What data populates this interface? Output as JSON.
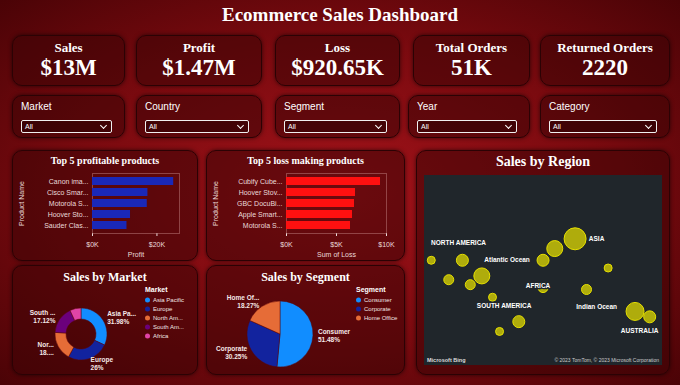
{
  "title": "Ecommerce Sales Dashboard",
  "kpis": [
    {
      "label": "Sales",
      "value": "$13M"
    },
    {
      "label": "Profit",
      "value": "$1.47M"
    },
    {
      "label": "Loss",
      "value": "$920.65K"
    },
    {
      "label": "Total Orders",
      "value": "51K"
    },
    {
      "label": "Returned Orders",
      "value": "2220"
    }
  ],
  "filters": [
    {
      "label": "Market",
      "value": "All"
    },
    {
      "label": "Country",
      "value": "All"
    },
    {
      "label": "Segment",
      "value": "All"
    },
    {
      "label": "Year",
      "value": "All"
    },
    {
      "label": "Category",
      "value": "All"
    }
  ],
  "chart_data": [
    {
      "type": "bar",
      "title": "Top 5 profitable products",
      "orientation": "horizontal",
      "categories": [
        "Canon ima...",
        "Cisco Smar...",
        "Motorola S...",
        "Hoover Sto...",
        "Sauder Clas..."
      ],
      "values": [
        25.2,
        17.2,
        17.0,
        11.8,
        10.7
      ],
      "color": "#1a28b8",
      "xlim": [
        0,
        27
      ],
      "xticks": [
        {
          "value": 0,
          "label": "$0K"
        },
        {
          "value": 20,
          "label": "$20K"
        }
      ],
      "xlabel": "Profit",
      "ylabel": "Product Name"
    },
    {
      "type": "bar",
      "title": "Top 5 loss making products",
      "orientation": "horizontal",
      "categories": [
        "Cubify Cube...",
        "Hoover Stov...",
        "GBC DocuBi...",
        "Apple Smart...",
        "Motorola S..."
      ],
      "values": [
        9.4,
        6.9,
        6.8,
        6.6,
        6.4
      ],
      "color": "#ff1010",
      "xlim": [
        0,
        10
      ],
      "xticks": [
        {
          "value": 0,
          "label": "$0K"
        },
        {
          "value": 5,
          "label": "$5K"
        },
        {
          "value": 10,
          "label": "$10K"
        }
      ],
      "xlabel": "Sum of Loss",
      "ylabel": "Product Name"
    },
    {
      "type": "bubble_map",
      "title": "Sales by Region",
      "color": "#e6e000",
      "tick_labels": false,
      "xlim": [
        -110,
        150
      ],
      "ylim": [
        -50,
        80
      ],
      "points": {
        "lon": [
          54.5,
          32.3,
          19.5,
          -47.4,
          -68.6,
          -83.5,
          -60,
          -35.7,
          -7,
          -28,
          67,
          19.5,
          120,
          136,
          90.6,
          -102.6
        ],
        "lat": [
          36.7,
          30,
          22,
          11.3,
          22,
          8.7,
          5.3,
          -3.3,
          -20,
          -26.7,
          2,
          3.3,
          -13,
          -16.7,
          16.7,
          22
        ],
        "size": [
          121,
          64,
          36,
          64,
          36,
          25,
          25,
          16,
          36,
          16,
          25,
          25,
          81,
          36,
          16,
          16
        ]
      },
      "region_labels": {
        "text": [
          "NORTH AMERICA",
          "Atlantic Ocean",
          "ASIA",
          "SOUTH AMERICA",
          "AFRICA",
          "Indian Ocean",
          "AUSTRALIA"
        ],
        "lon": [
          -72.8,
          -19.8,
          78,
          -23,
          14,
          78,
          125
        ],
        "lat": [
          34,
          22,
          36.7,
          -9,
          4.7,
          -10,
          -26
        ]
      },
      "attribution": [
        "Microsoft Bing",
        "© 2023 TomTom, © 2023 Microsoft Corporation"
      ]
    },
    {
      "type": "donut",
      "title": "Sales by Market",
      "legend_title": "Market",
      "legend": "right",
      "data_labels": true,
      "categories": [
        "Asia Pacific",
        "Europe",
        "North Am...",
        "South Am...",
        "Africa"
      ],
      "values": [
        31.98,
        26,
        18.0,
        17.12,
        6.9
      ],
      "slice_labels": [
        "Asia Pa...",
        "Europe",
        "Nor...",
        "South ...",
        null
      ],
      "value_labels": [
        "31.98%",
        "26%",
        "18....",
        "17.12%",
        null
      ],
      "colors": [
        "#118dff",
        "#12239e",
        "#e66c37",
        "#6b007b",
        "#e044a7"
      ]
    },
    {
      "type": "pie",
      "title": "Sales by Segment",
      "legend_title": "Segment",
      "legend": "right",
      "data_labels": true,
      "categories": [
        "Consumer",
        "Corporate",
        "Home Office"
      ],
      "values": [
        51.48,
        30.25,
        18.27
      ],
      "slice_labels": [
        "Consumer",
        "Corporate",
        "Home Of..."
      ],
      "value_labels": [
        "51.48%",
        "30.25%",
        "18.27%"
      ],
      "colors": [
        "#118dff",
        "#12239e",
        "#e66c37"
      ]
    }
  ]
}
